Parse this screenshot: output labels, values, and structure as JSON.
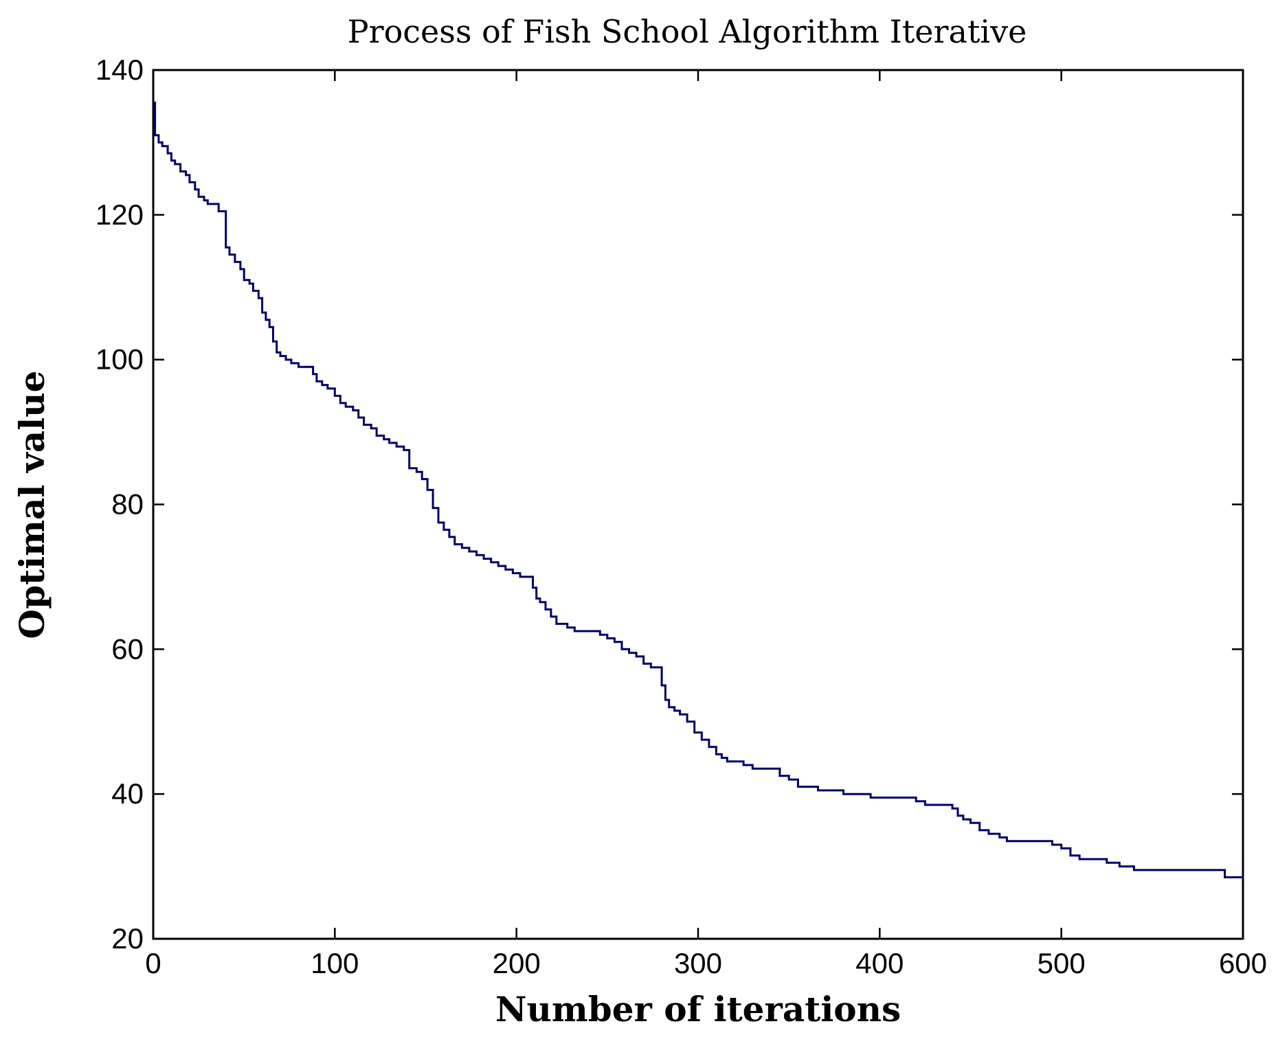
{
  "chart_data": {
    "type": "line",
    "title": "Process of Fish School Algorithm Iterative",
    "xlabel": "Number of iterations",
    "ylabel": "Optimal value",
    "xlim": [
      0,
      600
    ],
    "ylim": [
      20,
      140
    ],
    "xticks": [
      0,
      100,
      200,
      300,
      400,
      500,
      600
    ],
    "yticks": [
      20,
      40,
      60,
      80,
      100,
      120,
      140
    ],
    "grid": false,
    "step": true,
    "colors": {
      "series": "#000066",
      "frame": "#000000"
    },
    "series": [
      {
        "x": [
          0,
          1,
          3,
          5,
          8,
          10,
          12,
          15,
          18,
          20,
          23,
          25,
          28,
          30,
          33,
          36,
          40,
          42,
          45,
          48,
          50,
          53,
          55,
          58,
          60,
          62,
          64,
          66,
          68,
          70,
          73,
          76,
          80,
          85,
          88,
          90,
          93,
          96,
          100,
          103,
          106,
          110,
          113,
          116,
          120,
          123,
          127,
          130,
          134,
          138,
          141,
          145,
          148,
          151,
          154,
          157,
          160,
          163,
          166,
          170,
          174,
          178,
          182,
          186,
          190,
          194,
          198,
          202,
          206,
          209,
          211,
          213,
          216,
          219,
          222,
          225,
          228,
          232,
          235,
          238,
          242,
          246,
          250,
          254,
          258,
          262,
          266,
          270,
          274,
          277,
          280,
          282,
          284,
          287,
          290,
          294,
          298,
          302,
          306,
          310,
          313,
          316,
          320,
          325,
          330,
          335,
          340,
          345,
          350,
          355,
          360,
          366,
          372,
          380,
          388,
          395,
          400,
          408,
          415,
          420,
          425,
          430,
          436,
          440,
          443,
          446,
          450,
          455,
          460,
          466,
          470,
          475,
          480,
          485,
          490,
          495,
          500,
          505,
          510,
          518,
          525,
          532,
          540,
          548,
          555,
          565,
          575,
          580,
          590,
          600
        ],
        "y": [
          135.5,
          131,
          130,
          129.5,
          128.5,
          127.5,
          127,
          126,
          125.5,
          124.5,
          123.5,
          122.5,
          122,
          121.5,
          121.5,
          120.5,
          115.5,
          114.5,
          113.5,
          112.5,
          111,
          110.5,
          109.5,
          108.5,
          106.5,
          105.5,
          104.5,
          102.5,
          101,
          100.5,
          100,
          99.5,
          99,
          99,
          98,
          97,
          96.5,
          96,
          95,
          94,
          93.5,
          93,
          92,
          91,
          90.5,
          89.5,
          89,
          88.5,
          88,
          87.5,
          85,
          84.5,
          83.5,
          82,
          79.5,
          77.5,
          76.5,
          75.5,
          74.5,
          74,
          73.5,
          73,
          72.5,
          72,
          71.5,
          71,
          70.5,
          70,
          70,
          68.5,
          67,
          66.5,
          65.5,
          64.5,
          63.5,
          63.5,
          63,
          62.5,
          62.5,
          62.5,
          62.5,
          62,
          61.5,
          61,
          60,
          59.5,
          59,
          58,
          57.5,
          57.5,
          55,
          53,
          52,
          51.5,
          51,
          50,
          48.5,
          47.5,
          46.5,
          45.5,
          45,
          44.5,
          44.5,
          44,
          43.5,
          43.5,
          43.5,
          42.5,
          42,
          41,
          41,
          40.5,
          40.5,
          40,
          40,
          39.5,
          39.5,
          39.5,
          39.5,
          39,
          38.5,
          38.5,
          38.5,
          38,
          37,
          36.5,
          36,
          35,
          34.5,
          34,
          33.5,
          33.5,
          33.5,
          33.5,
          33.5,
          33,
          32.5,
          31.5,
          31,
          31,
          30.5,
          30,
          29.5,
          29.5,
          29.5,
          29.5,
          29.5,
          29.5,
          28.5,
          28.5
        ]
      }
    ]
  }
}
